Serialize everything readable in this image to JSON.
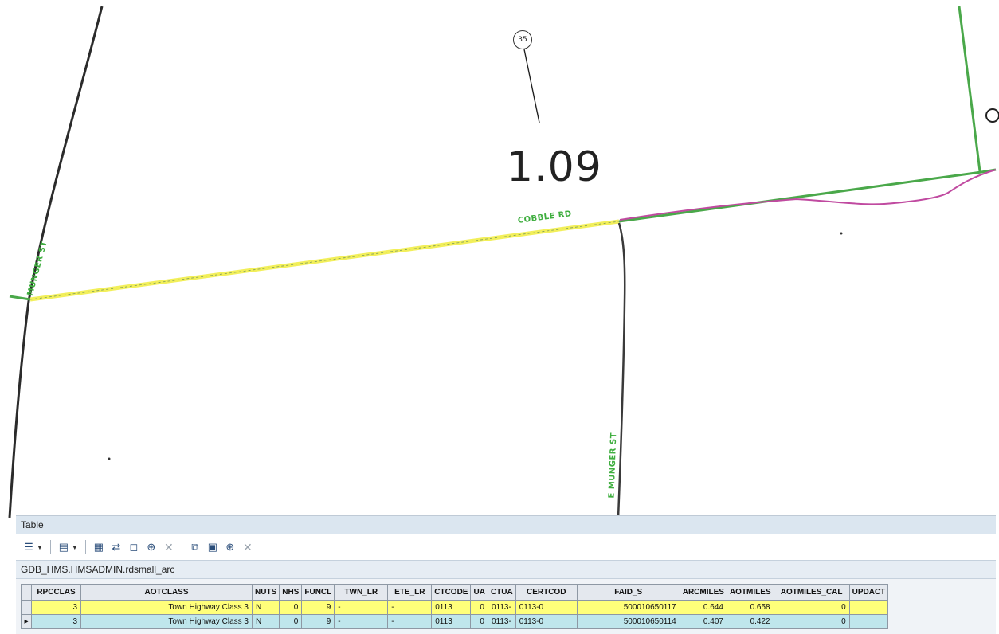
{
  "map": {
    "marker_label": "35",
    "big_number": "1.09",
    "road_labels": {
      "cobble": "COBBLE RD",
      "munger_left": "MUNGER ST",
      "munger_south": "E MUNGER ST"
    },
    "colors": {
      "selected_road": "#f2ef5a",
      "road_green": "#4aa84a",
      "road_dark": "#2b2b2b",
      "pink_line": "#c04aa0"
    }
  },
  "table_window": {
    "title": "Table",
    "layer_name": "GDB_HMS.HMSADMIN.rdsmall_arc",
    "toolbar_icons": [
      "table-options-icon",
      "related-tables-icon",
      "select-by-attributes-icon",
      "switch-selection-icon",
      "clear-selection-icon",
      "zoom-to-selected-icon",
      "delete-selected-icon",
      "copy-selected-icon",
      "paste-icon",
      "zoom-icon",
      "delete-icon"
    ],
    "columns": [
      "",
      "RPCCLAS",
      "AOTCLASS",
      "NUTS",
      "NHS",
      "FUNCL",
      "TWN_LR",
      "ETE_LR",
      "CTCODE",
      "UA",
      "CTUA",
      "CERTCOD",
      "FAID_S",
      "ARCMILES",
      "AOTMILES",
      "AOTMILES_CAL",
      "UPDACT"
    ],
    "rows": [
      {
        "indicator": "",
        "selected": true,
        "cells": [
          "3",
          "Town Highway Class 3",
          "N",
          "0",
          "9",
          "-",
          "-",
          "0113",
          "0",
          "0113-",
          "0113-0",
          "500010650117",
          "0.644",
          "0.658",
          "0",
          ""
        ]
      },
      {
        "indicator": "▸",
        "selected": false,
        "cells": [
          "3",
          "Town Highway Class 3",
          "N",
          "0",
          "9",
          "-",
          "-",
          "0113",
          "0",
          "0113-",
          "0113-0",
          "500010650114",
          "0.407",
          "0.422",
          "0",
          ""
        ]
      }
    ]
  }
}
